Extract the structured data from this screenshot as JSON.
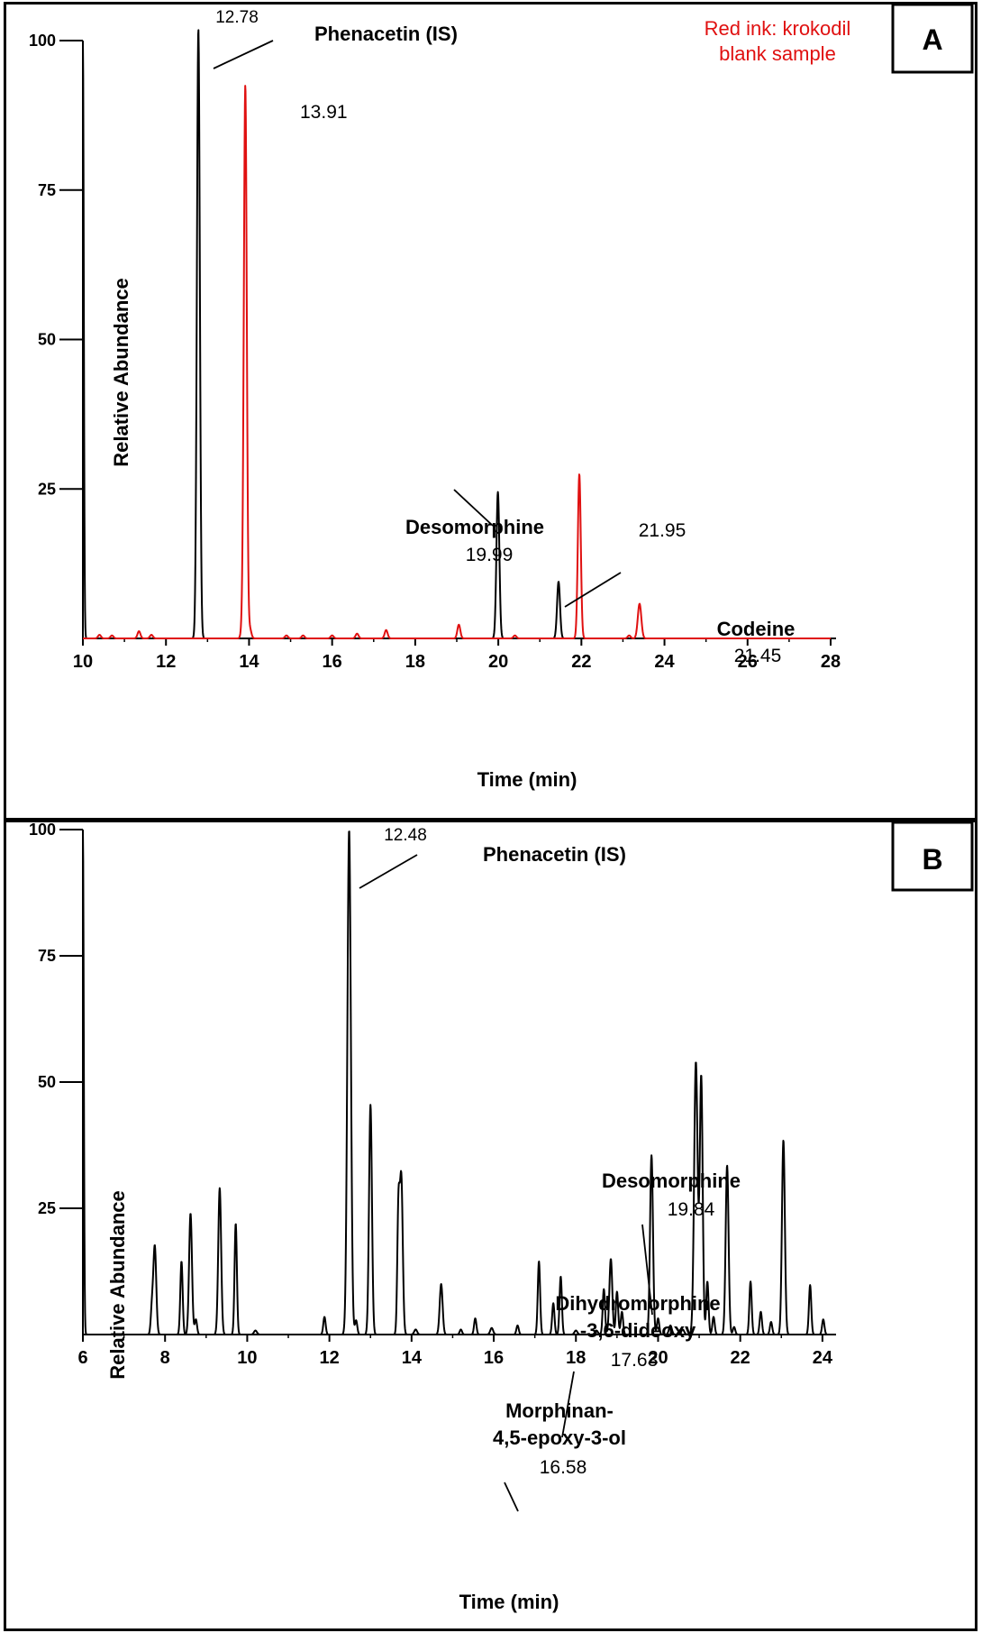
{
  "chart_data": [
    {
      "panel": "A",
      "type": "line",
      "xlabel": "Time (min)",
      "ylabel": "Relative Abundance",
      "xlim": [
        10,
        28
      ],
      "ylim": [
        0,
        100
      ],
      "x_ticks": [
        10,
        12,
        14,
        16,
        18,
        20,
        22,
        24,
        26,
        28
      ],
      "y_ticks": [
        25,
        50,
        75,
        100
      ],
      "note": "Red ink: krokodil\nblank sample",
      "series": [
        {
          "color": "#000000",
          "peaks": [
            {
              "rt": 10.0,
              "height": 100,
              "w": 0.03
            },
            {
              "rt": 12.78,
              "height": 102,
              "w": 0.05
            },
            {
              "rt": 19.99,
              "height": 24.5,
              "w": 0.05
            },
            {
              "rt": 21.45,
              "height": 9.5,
              "w": 0.05
            }
          ]
        },
        {
          "color": "#e01010",
          "peaks": [
            {
              "rt": 10.4,
              "height": 0.6,
              "w": 0.05
            },
            {
              "rt": 10.7,
              "height": 0.5,
              "w": 0.05
            },
            {
              "rt": 11.35,
              "height": 1.2,
              "w": 0.05
            },
            {
              "rt": 11.65,
              "height": 0.6,
              "w": 0.05
            },
            {
              "rt": 13.85,
              "height": 2.5,
              "w": 0.05
            },
            {
              "rt": 13.91,
              "height": 92,
              "w": 0.05
            },
            {
              "rt": 14.02,
              "height": 1.6,
              "w": 0.05
            },
            {
              "rt": 14.9,
              "height": 0.5,
              "w": 0.05
            },
            {
              "rt": 15.3,
              "height": 0.5,
              "w": 0.05
            },
            {
              "rt": 16.0,
              "height": 0.5,
              "w": 0.05
            },
            {
              "rt": 16.6,
              "height": 0.8,
              "w": 0.05
            },
            {
              "rt": 17.3,
              "height": 1.4,
              "w": 0.05
            },
            {
              "rt": 19.05,
              "height": 2.3,
              "w": 0.05
            },
            {
              "rt": 20.4,
              "height": 0.5,
              "w": 0.05
            },
            {
              "rt": 21.95,
              "height": 27.5,
              "w": 0.05
            },
            {
              "rt": 23.15,
              "height": 0.5,
              "w": 0.05
            },
            {
              "rt": 23.4,
              "height": 5.8,
              "w": 0.06
            }
          ]
        }
      ],
      "annotations": [
        {
          "label": "12.78"
        },
        {
          "label": "Phenacetin (IS)"
        },
        {
          "label": "13.91"
        },
        {
          "label": "Desomorphine"
        },
        {
          "label": "19.99"
        },
        {
          "label": "21.95"
        },
        {
          "label": "Codeine"
        },
        {
          "label": "21.45"
        }
      ]
    },
    {
      "panel": "B",
      "type": "line",
      "xlabel": "Time (min)",
      "ylabel": "Relative Abundance",
      "xlim": [
        6,
        24.2
      ],
      "ylim": [
        0,
        100
      ],
      "x_ticks": [
        6,
        8,
        10,
        12,
        14,
        16,
        18,
        20,
        22,
        24
      ],
      "y_ticks": [
        25,
        50,
        75,
        100
      ],
      "series": [
        {
          "color": "#000000",
          "peaks": [
            {
              "rt": 6.0,
              "height": 100,
              "w": 0.03
            },
            {
              "rt": 7.68,
              "height": 5,
              "w": 0.04
            },
            {
              "rt": 7.75,
              "height": 17.5,
              "w": 0.05
            },
            {
              "rt": 8.4,
              "height": 14.5,
              "w": 0.04
            },
            {
              "rt": 8.62,
              "height": 24,
              "w": 0.05
            },
            {
              "rt": 8.75,
              "height": 3,
              "w": 0.04
            },
            {
              "rt": 9.33,
              "height": 29,
              "w": 0.05
            },
            {
              "rt": 9.72,
              "height": 22,
              "w": 0.04
            },
            {
              "rt": 10.2,
              "height": 0.8,
              "w": 0.05
            },
            {
              "rt": 11.88,
              "height": 3.5,
              "w": 0.04
            },
            {
              "rt": 12.48,
              "height": 100,
              "w": 0.06
            },
            {
              "rt": 12.65,
              "height": 2.8,
              "w": 0.04
            },
            {
              "rt": 13.0,
              "height": 45.5,
              "w": 0.05
            },
            {
              "rt": 13.68,
              "height": 24,
              "w": 0.04
            },
            {
              "rt": 13.75,
              "height": 31,
              "w": 0.05
            },
            {
              "rt": 14.1,
              "height": 1.0,
              "w": 0.05
            },
            {
              "rt": 14.72,
              "height": 10,
              "w": 0.05
            },
            {
              "rt": 15.2,
              "height": 1.0,
              "w": 0.04
            },
            {
              "rt": 15.55,
              "height": 3.2,
              "w": 0.04
            },
            {
              "rt": 15.95,
              "height": 1.3,
              "w": 0.05
            },
            {
              "rt": 16.58,
              "height": 1.8,
              "w": 0.04
            },
            {
              "rt": 17.1,
              "height": 14.5,
              "w": 0.04
            },
            {
              "rt": 17.45,
              "height": 6.2,
              "w": 0.04
            },
            {
              "rt": 17.63,
              "height": 11.5,
              "w": 0.04
            },
            {
              "rt": 18.0,
              "height": 0.8,
              "w": 0.05
            },
            {
              "rt": 18.5,
              "height": 0.8,
              "w": 0.05
            },
            {
              "rt": 18.68,
              "height": 9,
              "w": 0.04
            },
            {
              "rt": 18.85,
              "height": 15,
              "w": 0.05
            },
            {
              "rt": 19.0,
              "height": 8.5,
              "w": 0.04
            },
            {
              "rt": 19.12,
              "height": 4.5,
              "w": 0.04
            },
            {
              "rt": 19.84,
              "height": 35.5,
              "w": 0.05
            },
            {
              "rt": 20.0,
              "height": 3.2,
              "w": 0.04
            },
            {
              "rt": 20.3,
              "height": 1.8,
              "w": 0.05
            },
            {
              "rt": 20.6,
              "height": 1.0,
              "w": 0.05
            },
            {
              "rt": 20.92,
              "height": 54,
              "w": 0.06
            },
            {
              "rt": 21.05,
              "height": 51,
              "w": 0.05
            },
            {
              "rt": 21.2,
              "height": 10.5,
              "w": 0.04
            },
            {
              "rt": 21.35,
              "height": 3.5,
              "w": 0.04
            },
            {
              "rt": 21.68,
              "height": 33.5,
              "w": 0.05
            },
            {
              "rt": 21.85,
              "height": 1.5,
              "w": 0.04
            },
            {
              "rt": 22.25,
              "height": 10.5,
              "w": 0.04
            },
            {
              "rt": 22.5,
              "height": 4.5,
              "w": 0.04
            },
            {
              "rt": 22.75,
              "height": 2.5,
              "w": 0.04
            },
            {
              "rt": 23.05,
              "height": 38.5,
              "w": 0.05
            },
            {
              "rt": 23.7,
              "height": 9.8,
              "w": 0.04
            },
            {
              "rt": 24.02,
              "height": 3.0,
              "w": 0.04
            }
          ]
        }
      ],
      "annotations": [
        {
          "label": "12.48"
        },
        {
          "label": "Phenacetin (IS)"
        },
        {
          "label": "Desomorphine"
        },
        {
          "label": "19.84"
        },
        {
          "label": "Dihydromorphine"
        },
        {
          "label": "-3,6-dideoxy"
        },
        {
          "label": "17.63"
        },
        {
          "label": "Morphinan-"
        },
        {
          "label": "4,5-epoxy-3-ol"
        },
        {
          "label": "16.58"
        }
      ]
    }
  ],
  "panels": {
    "a": {
      "letter": "A"
    },
    "b": {
      "letter": "B"
    }
  }
}
